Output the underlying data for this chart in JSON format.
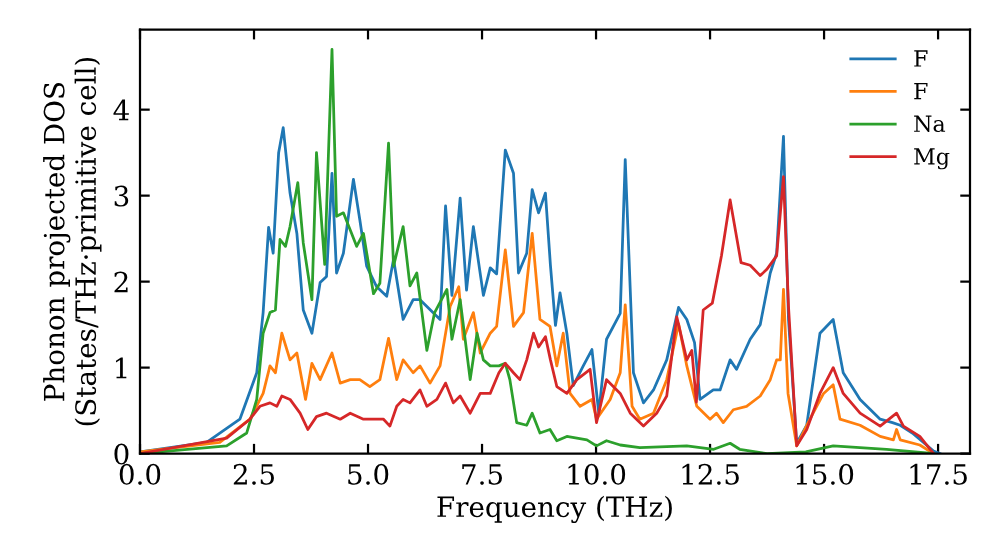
{
  "chart_data": {
    "type": "line",
    "xlabel": "Frequency (THz)",
    "ylabel": "Phonon projected DOS\n(States/THz·primitive cell)",
    "xlim": [
      0,
      18.2
    ],
    "ylim": [
      0,
      4.93
    ],
    "xticks": [
      {
        "value": 0,
        "label": "0.0"
      },
      {
        "value": 2.5,
        "label": "2.5"
      },
      {
        "value": 5,
        "label": "5.0"
      },
      {
        "value": 7.5,
        "label": "7.5"
      },
      {
        "value": 10,
        "label": "10.0"
      },
      {
        "value": 12.5,
        "label": "12.5"
      },
      {
        "value": 15,
        "label": "15.0"
      },
      {
        "value": 17.5,
        "label": "17.5"
      }
    ],
    "yticks": [
      0,
      1,
      2,
      3,
      4
    ],
    "grid": false,
    "legend": "top right",
    "marker": "none",
    "line_style": "solid",
    "series": [
      {
        "name": "F",
        "color": "#1f77b4",
        "x": [
          0,
          1.46,
          2.19,
          2.56,
          2.7,
          2.82,
          2.92,
          3.04,
          3.14,
          3.29,
          3.44,
          3.58,
          3.77,
          3.95,
          4.09,
          4.21,
          4.31,
          4.46,
          4.68,
          4.82,
          4.97,
          5.19,
          5.41,
          5.56,
          5.77,
          5.99,
          6.14,
          6.58,
          6.7,
          6.84,
          7.02,
          7.16,
          7.31,
          7.53,
          7.68,
          7.82,
          8.01,
          8.19,
          8.3,
          8.48,
          8.6,
          8.74,
          8.89,
          9.0,
          9.11,
          9.21,
          9.36,
          9.5,
          9.72,
          9.91,
          10.06,
          10.23,
          10.53,
          10.64,
          10.82,
          11.04,
          11.26,
          11.55,
          11.81,
          11.99,
          12.16,
          12.28,
          12.57,
          12.72,
          12.94,
          13.08,
          13.38,
          13.6,
          13.82,
          13.96,
          14.11,
          14.22,
          14.4,
          14.62,
          14.91,
          15.2,
          15.42,
          15.79,
          16.23,
          16.5,
          16.67,
          16.96,
          17.4,
          17.54
        ],
        "values": [
          0.02,
          0.13,
          0.4,
          0.94,
          1.64,
          2.63,
          2.33,
          3.5,
          3.79,
          3.03,
          2.56,
          1.67,
          1.4,
          1.99,
          2.06,
          3.26,
          2.1,
          2.33,
          3.19,
          2.72,
          2.18,
          1.94,
          1.83,
          2.26,
          1.56,
          1.79,
          1.79,
          1.56,
          2.88,
          1.84,
          2.97,
          1.9,
          2.64,
          1.84,
          2.16,
          2.09,
          3.53,
          3.26,
          2.1,
          2.33,
          3.07,
          2.8,
          3.03,
          2.19,
          1.49,
          1.87,
          1.4,
          0.79,
          1.02,
          1.21,
          0.47,
          1.33,
          1.63,
          3.42,
          0.94,
          0.59,
          0.74,
          1.09,
          1.7,
          1.56,
          1.29,
          0.63,
          0.74,
          0.74,
          1.09,
          0.98,
          1.33,
          1.5,
          2.1,
          2.33,
          3.69,
          1.56,
          0.12,
          0.33,
          1.4,
          1.56,
          0.94,
          0.63,
          0.4,
          0.36,
          0.33,
          0.23,
          0.03,
          0
        ]
      },
      {
        "name": "F",
        "color": "#ff7f0e",
        "x": [
          0,
          1.75,
          2.41,
          2.7,
          2.85,
          2.97,
          3.11,
          3.29,
          3.44,
          3.63,
          3.77,
          3.95,
          4.21,
          4.39,
          4.61,
          4.82,
          5.04,
          5.26,
          5.45,
          5.63,
          5.77,
          5.99,
          6.14,
          6.36,
          6.58,
          6.8,
          6.99,
          7.09,
          7.31,
          7.46,
          7.68,
          7.82,
          8.01,
          8.19,
          8.41,
          8.6,
          8.77,
          8.99,
          9.14,
          9.28,
          9.43,
          9.65,
          9.91,
          10.01,
          10.31,
          10.53,
          10.64,
          10.79,
          10.96,
          11.26,
          11.55,
          11.81,
          11.99,
          12.21,
          12.5,
          12.64,
          12.79,
          13.01,
          13.3,
          13.6,
          13.82,
          13.96,
          14.04,
          14.11,
          14.21,
          14.4,
          14.69,
          14.99,
          15.2,
          15.35,
          15.79,
          16.23,
          16.52,
          16.59,
          16.67,
          17.1,
          17.4
        ],
        "values": [
          0.02,
          0.13,
          0.4,
          0.7,
          1.02,
          0.94,
          1.4,
          1.09,
          1.17,
          0.63,
          1.05,
          0.86,
          1.17,
          0.82,
          0.86,
          0.86,
          0.78,
          0.86,
          1.34,
          0.86,
          1.09,
          0.94,
          1.02,
          0.82,
          1.02,
          1.71,
          1.94,
          1.33,
          1.64,
          1.17,
          1.4,
          1.48,
          2.37,
          1.48,
          1.64,
          2.56,
          1.56,
          1.48,
          1.02,
          1.4,
          0.7,
          0.55,
          0.63,
          0.4,
          0.63,
          0.94,
          1.73,
          0.55,
          0.4,
          0.47,
          0.86,
          1.51,
          1.02,
          0.55,
          0.4,
          0.47,
          0.36,
          0.51,
          0.55,
          0.67,
          0.86,
          1.09,
          1.09,
          1.91,
          0.7,
          0.09,
          0.4,
          0.7,
          0.8,
          0.4,
          0.33,
          0.2,
          0.16,
          0.28,
          0.16,
          0.1,
          0
        ]
      },
      {
        "name": "Na",
        "color": "#2ca02c",
        "x": [
          0,
          1.9,
          2.34,
          2.56,
          2.7,
          2.85,
          2.97,
          3.07,
          3.19,
          3.29,
          3.46,
          3.58,
          3.77,
          3.87,
          4.05,
          4.21,
          4.31,
          4.46,
          4.61,
          4.75,
          4.9,
          5.12,
          5.26,
          5.45,
          5.56,
          5.77,
          5.92,
          6.07,
          6.29,
          6.46,
          6.73,
          6.84,
          7.02,
          7.24,
          7.39,
          7.53,
          7.68,
          7.87,
          8.01,
          8.11,
          8.26,
          8.48,
          8.6,
          8.77,
          8.99,
          9.14,
          9.36,
          9.8,
          10.01,
          10.23,
          10.53,
          10.96,
          11.99,
          12.58,
          12.94,
          13.15,
          13.75,
          14.6,
          15.2,
          16.37,
          17.4
        ],
        "values": [
          0,
          0.09,
          0.24,
          0.63,
          1.4,
          1.64,
          1.67,
          2.49,
          2.41,
          2.64,
          3.15,
          2.45,
          1.79,
          3.5,
          2.2,
          4.7,
          2.76,
          2.8,
          2.6,
          2.41,
          2.56,
          1.86,
          1.98,
          3.61,
          2.18,
          2.64,
          1.95,
          2.1,
          1.2,
          1.64,
          1.91,
          1.33,
          1.79,
          0.86,
          1.4,
          1.09,
          1.02,
          1.02,
          1.05,
          0.86,
          0.36,
          0.33,
          0.47,
          0.24,
          0.28,
          0.15,
          0.2,
          0.16,
          0.09,
          0.15,
          0.1,
          0.07,
          0.09,
          0.05,
          0.12,
          0.05,
          0.0,
          0.02,
          0.09,
          0.05,
          0
        ]
      },
      {
        "name": "Mg",
        "color": "#d62728",
        "x": [
          0,
          1.9,
          2.41,
          2.63,
          2.85,
          3.0,
          3.11,
          3.29,
          3.51,
          3.68,
          3.87,
          4.09,
          4.39,
          4.61,
          4.9,
          5.12,
          5.34,
          5.48,
          5.63,
          5.77,
          5.92,
          6.14,
          6.29,
          6.51,
          6.7,
          6.87,
          7.02,
          7.24,
          7.46,
          7.68,
          7.87,
          8.01,
          8.19,
          8.33,
          8.48,
          8.63,
          8.74,
          8.89,
          9.0,
          9.14,
          9.36,
          9.58,
          9.87,
          10.01,
          10.23,
          10.53,
          10.75,
          11.04,
          11.33,
          11.55,
          11.77,
          11.99,
          12.1,
          12.2,
          12.35,
          12.55,
          12.75,
          12.94,
          13.18,
          13.38,
          13.6,
          13.74,
          13.96,
          14.11,
          14.22,
          14.4,
          14.62,
          14.91,
          15.2,
          15.42,
          15.79,
          16.23,
          16.59,
          16.74,
          17.1,
          17.4
        ],
        "values": [
          0,
          0.18,
          0.4,
          0.55,
          0.59,
          0.55,
          0.67,
          0.63,
          0.47,
          0.28,
          0.43,
          0.47,
          0.4,
          0.47,
          0.4,
          0.4,
          0.4,
          0.32,
          0.55,
          0.63,
          0.59,
          0.74,
          0.55,
          0.63,
          0.82,
          0.59,
          0.67,
          0.47,
          0.7,
          0.7,
          0.94,
          1.05,
          0.94,
          0.86,
          1.09,
          1.4,
          1.24,
          1.36,
          1.09,
          0.78,
          0.7,
          0.86,
          0.98,
          0.36,
          0.86,
          0.7,
          0.47,
          0.32,
          0.47,
          0.67,
          1.59,
          1.09,
          1.2,
          0.6,
          1.67,
          1.75,
          2.3,
          2.95,
          2.22,
          2.19,
          2.07,
          2.14,
          2.3,
          3.22,
          1.71,
          0.09,
          0.28,
          0.7,
          1.0,
          0.7,
          0.47,
          0.32,
          0.47,
          0.32,
          0.2,
          0
        ]
      }
    ]
  }
}
